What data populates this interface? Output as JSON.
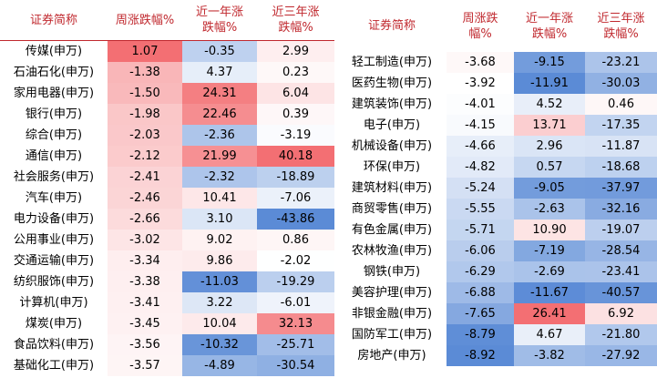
{
  "headers": {
    "name": "证券简称",
    "week": "周涨跌幅%",
    "one_year": "近一年涨\n跌幅%",
    "three_year": "近三年涨\n跌幅%"
  },
  "headers_right": {
    "name": "证券简称",
    "week": "周涨跌\n幅%",
    "one_year": "近一年涨\n跌幅%",
    "three_year": "近三年涨\n跌幅%"
  },
  "left_rows": [
    {
      "name": "传媒(申万)",
      "week": "1.07",
      "one_year": "-0.35",
      "three_year": "2.99"
    },
    {
      "name": "石油石化(申万)",
      "week": "-1.38",
      "one_year": "4.37",
      "three_year": "0.23"
    },
    {
      "name": "家用电器(申万)",
      "week": "-1.50",
      "one_year": "24.31",
      "three_year": "6.04"
    },
    {
      "name": "银行(申万)",
      "week": "-1.98",
      "one_year": "22.46",
      "three_year": "0.39"
    },
    {
      "name": "综合(申万)",
      "week": "-2.03",
      "one_year": "-2.36",
      "three_year": "-3.19"
    },
    {
      "name": "通信(申万)",
      "week": "-2.12",
      "one_year": "21.99",
      "three_year": "40.18"
    },
    {
      "name": "社会服务(申万)",
      "week": "-2.41",
      "one_year": "-2.32",
      "three_year": "-18.89"
    },
    {
      "name": "汽车(申万)",
      "week": "-2.46",
      "one_year": "10.41",
      "three_year": "-7.06"
    },
    {
      "name": "电力设备(申万)",
      "week": "-2.66",
      "one_year": "3.10",
      "three_year": "-43.86"
    },
    {
      "name": "公用事业(申万)",
      "week": "-3.02",
      "one_year": "9.02",
      "three_year": "0.86"
    },
    {
      "name": "交通运输(申万)",
      "week": "-3.34",
      "one_year": "9.86",
      "three_year": "-2.02"
    },
    {
      "name": "纺织服饰(申万)",
      "week": "-3.38",
      "one_year": "-11.03",
      "three_year": "-19.29"
    },
    {
      "name": "计算机(申万)",
      "week": "-3.41",
      "one_year": "3.22",
      "three_year": "-6.01"
    },
    {
      "name": "煤炭(申万)",
      "week": "-3.45",
      "one_year": "10.04",
      "three_year": "32.13"
    },
    {
      "name": "食品饮料(申万)",
      "week": "-3.56",
      "one_year": "-10.32",
      "three_year": "-25.71"
    },
    {
      "name": "基础化工(申万)",
      "week": "-3.57",
      "one_year": "-4.89",
      "three_year": "-30.54"
    }
  ],
  "right_rows": [
    {
      "name": "轻工制造(申万)",
      "week": "-3.68",
      "one_year": "-9.15",
      "three_year": "-23.21"
    },
    {
      "name": "医药生物(申万)",
      "week": "-3.92",
      "one_year": "-11.91",
      "three_year": "-30.03"
    },
    {
      "name": "建筑装饰(申万)",
      "week": "-4.01",
      "one_year": "4.52",
      "three_year": "0.46"
    },
    {
      "name": "电子(申万)",
      "week": "-4.15",
      "one_year": "13.71",
      "three_year": "-17.35"
    },
    {
      "name": "机械设备(申万)",
      "week": "-4.66",
      "one_year": "2.96",
      "three_year": "-11.87"
    },
    {
      "name": "环保(申万)",
      "week": "-4.82",
      "one_year": "0.57",
      "three_year": "-18.68"
    },
    {
      "name": "建筑材料(申万)",
      "week": "-5.24",
      "one_year": "-9.05",
      "three_year": "-37.97"
    },
    {
      "name": "商贸零售(申万)",
      "week": "-5.55",
      "one_year": "-2.63",
      "three_year": "-32.16"
    },
    {
      "name": "有色金属(申万)",
      "week": "-5.71",
      "one_year": "10.90",
      "three_year": "-19.07"
    },
    {
      "name": "农林牧渔(申万)",
      "week": "-6.06",
      "one_year": "-7.19",
      "three_year": "-28.54"
    },
    {
      "name": "钢铁(申万)",
      "week": "-6.29",
      "one_year": "-2.69",
      "three_year": "-23.41"
    },
    {
      "name": "美容护理(申万)",
      "week": "-6.88",
      "one_year": "-11.67",
      "three_year": "-40.57"
    },
    {
      "name": "非银金融(申万)",
      "week": "-7.65",
      "one_year": "26.41",
      "three_year": "6.92"
    },
    {
      "name": "国防军工(申万)",
      "week": "-8.79",
      "one_year": "4.67",
      "three_year": "-21.80"
    },
    {
      "name": "房地产(申万)",
      "week": "-8.92",
      "one_year": "-3.82",
      "three_year": "-27.92"
    }
  ],
  "colors": {
    "header_text": "#c0282e",
    "positive_max": "#f36f73",
    "negative_max": "#5b8bd6",
    "neutral": "#ffffff"
  }
}
